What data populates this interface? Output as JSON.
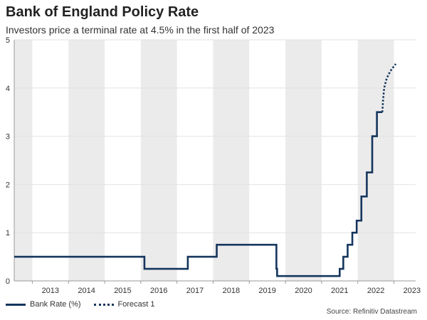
{
  "chart_data": {
    "type": "line",
    "title": "Bank of England Policy Rate",
    "subtitle": "Investors price a terminal rate at 4.5% in the first half of 2023",
    "xlabel": "",
    "ylabel": "",
    "xlim": [
      2012.5,
      2023.6
    ],
    "ylim": [
      0,
      5
    ],
    "y_ticks": [
      0,
      1,
      2,
      3,
      4,
      5
    ],
    "year_labels": [
      "2013",
      "2014",
      "2015",
      "2016",
      "2017",
      "2018",
      "2019",
      "2020",
      "2021",
      "2022",
      "2023"
    ],
    "shaded_bands": [
      [
        2012.5,
        2013.0
      ],
      [
        2014.0,
        2015.0
      ],
      [
        2016.0,
        2017.0
      ],
      [
        2018.0,
        2019.0
      ],
      [
        2020.0,
        2021.0
      ],
      [
        2022.0,
        2023.0
      ]
    ],
    "series": [
      {
        "name": "Bank Rate (%)",
        "style": "solid",
        "color": "#15355e",
        "shape": "step",
        "points": [
          [
            2012.5,
            0.5
          ],
          [
            2016.1,
            0.5
          ],
          [
            2016.1,
            0.25
          ],
          [
            2017.3,
            0.25
          ],
          [
            2017.3,
            0.5
          ],
          [
            2018.1,
            0.5
          ],
          [
            2018.1,
            0.75
          ],
          [
            2019.75,
            0.75
          ],
          [
            2019.75,
            0.25
          ],
          [
            2019.77,
            0.25
          ],
          [
            2019.77,
            0.1
          ],
          [
            2021.5,
            0.1
          ],
          [
            2021.5,
            0.25
          ],
          [
            2021.6,
            0.25
          ],
          [
            2021.6,
            0.5
          ],
          [
            2021.72,
            0.5
          ],
          [
            2021.72,
            0.75
          ],
          [
            2021.85,
            0.75
          ],
          [
            2021.85,
            1.0
          ],
          [
            2021.97,
            1.0
          ],
          [
            2021.97,
            1.25
          ],
          [
            2022.1,
            1.25
          ],
          [
            2022.1,
            1.75
          ],
          [
            2022.25,
            1.75
          ],
          [
            2022.25,
            2.25
          ],
          [
            2022.4,
            2.25
          ],
          [
            2022.4,
            3.0
          ],
          [
            2022.53,
            3.0
          ],
          [
            2022.53,
            3.5
          ],
          [
            2022.68,
            3.5
          ]
        ]
      },
      {
        "name": "Forecast 1",
        "style": "dotted",
        "color": "#15355e",
        "shape": "line",
        "points": [
          [
            2022.68,
            3.5
          ],
          [
            2022.7,
            3.75
          ],
          [
            2022.73,
            4.0
          ],
          [
            2022.8,
            4.2
          ],
          [
            2022.9,
            4.35
          ],
          [
            2023.0,
            4.45
          ],
          [
            2023.05,
            4.5
          ]
        ]
      }
    ],
    "legend": {
      "placement": "bottom-left"
    },
    "source": "Source: Refinitiv Datastream"
  }
}
